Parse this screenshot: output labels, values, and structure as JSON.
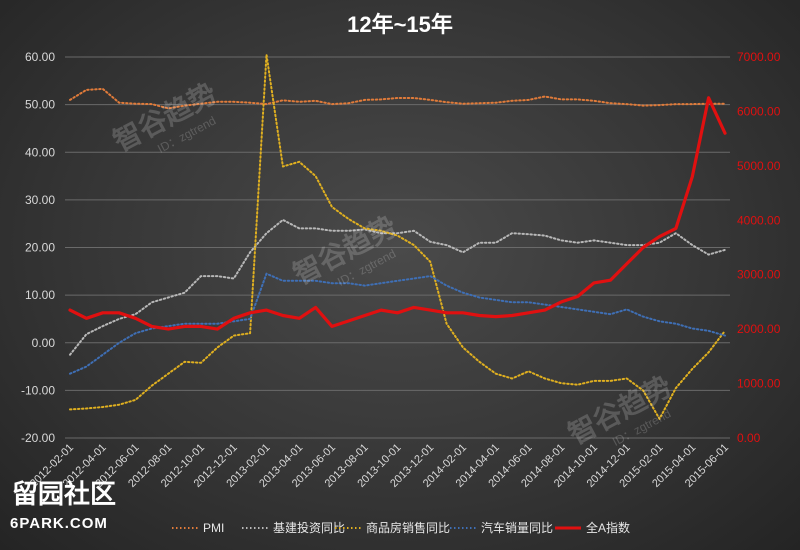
{
  "chart_data": {
    "type": "line",
    "title": "12年~15年",
    "x": [
      "2012-02-01",
      "2012-03-01",
      "2012-04-01",
      "2012-05-01",
      "2012-06-01",
      "2012-07-01",
      "2012-08-01",
      "2012-09-01",
      "2012-10-01",
      "2012-11-01",
      "2012-12-01",
      "2013-01-01",
      "2013-02-01",
      "2013-03-01",
      "2013-04-01",
      "2013-05-01",
      "2013-06-01",
      "2013-07-01",
      "2013-08-01",
      "2013-09-01",
      "2013-10-01",
      "2013-11-01",
      "2013-12-01",
      "2014-01-01",
      "2014-02-01",
      "2014-03-01",
      "2014-04-01",
      "2014-05-01",
      "2014-06-01",
      "2014-07-01",
      "2014-08-01",
      "2014-09-01",
      "2014-10-01",
      "2014-11-01",
      "2014-12-01",
      "2015-01-01",
      "2015-02-01",
      "2015-03-01",
      "2015-04-01",
      "2015-05-01",
      "2015-06-01"
    ],
    "xticks": [
      "2012-02-01",
      "2012-04-01",
      "2012-06-01",
      "2012-08-01",
      "2012-10-01",
      "2012-12-01",
      "2013-02-01",
      "2013-04-01",
      "2013-06-01",
      "2013-08-01",
      "2013-10-01",
      "2013-12-01",
      "2014-02-01",
      "2014-04-01",
      "2014-06-01",
      "2014-08-01",
      "2014-10-01",
      "2014-12-01",
      "2015-02-01",
      "2015-04-01",
      "2015-06-01"
    ],
    "y_left": {
      "ticks": [
        "60.00",
        "50.00",
        "40.00",
        "30.00",
        "20.00",
        "10.00",
        "0.00",
        "-10.00",
        "-20.00"
      ],
      "range": [
        -20,
        60
      ]
    },
    "y_right": {
      "ticks": [
        "7000.00",
        "6000.00",
        "5000.00",
        "4000.00",
        "3000.00",
        "2000.00",
        "1000.00",
        "0.00"
      ],
      "range": [
        0,
        7000
      ]
    },
    "series": [
      {
        "name": "PMI",
        "axis": "left",
        "color": "#e07b3a",
        "style": "dotted",
        "values": [
          51.0,
          53.1,
          53.3,
          50.4,
          50.2,
          50.1,
          49.2,
          49.8,
          50.2,
          50.6,
          50.6,
          50.4,
          50.1,
          50.9,
          50.6,
          50.8,
          50.1,
          50.3,
          51.0,
          51.1,
          51.4,
          51.4,
          51.0,
          50.5,
          50.2,
          50.3,
          50.4,
          50.8,
          51.0,
          51.7,
          51.1,
          51.1,
          50.8,
          50.3,
          50.1,
          49.8,
          49.9,
          50.1,
          50.1,
          50.2,
          50.2
        ]
      },
      {
        "name": "基建投资同比",
        "axis": "left",
        "color": "#b8b8b8",
        "style": "dotted",
        "values": [
          -2.5,
          1.8,
          3.5,
          5.0,
          6.0,
          8.5,
          9.5,
          10.5,
          14.0,
          14.0,
          13.5,
          19.0,
          23.0,
          25.8,
          24.0,
          24.0,
          23.5,
          23.5,
          23.8,
          23.0,
          23.0,
          23.5,
          21.2,
          20.5,
          19.0,
          21.0,
          21.0,
          23.0,
          22.8,
          22.5,
          21.5,
          21.0,
          21.5,
          21.0,
          20.5,
          20.5,
          21.0,
          23.0,
          20.5,
          18.5,
          19.5
        ]
      },
      {
        "name": "商品房销售同比",
        "axis": "left",
        "color": "#e0b020",
        "style": "dotted",
        "values": [
          -14.0,
          -13.8,
          -13.5,
          -13.0,
          -12.0,
          -9.0,
          -6.5,
          -4.0,
          -4.2,
          -1.0,
          1.5,
          2.0,
          60.5,
          37.0,
          38.0,
          35.0,
          28.5,
          26.0,
          24.0,
          23.5,
          22.5,
          20.5,
          17.0,
          4.0,
          -1.0,
          -4.0,
          -6.5,
          -7.5,
          -6.0,
          -7.5,
          -8.5,
          -8.8,
          -8.0,
          -8.0,
          -7.5,
          -10.0,
          -16.0,
          -9.5,
          -5.5,
          -2.0,
          2.5
        ]
      },
      {
        "name": "汽车销量同比",
        "axis": "left",
        "color": "#3f6fb5",
        "style": "dotted",
        "values": [
          -6.5,
          -5.0,
          -2.5,
          0.0,
          2.0,
          3.0,
          3.5,
          4.0,
          4.0,
          4.0,
          4.5,
          5.0,
          14.5,
          13.0,
          13.0,
          13.0,
          12.5,
          12.5,
          12.0,
          12.5,
          13.0,
          13.5,
          14.0,
          12.0,
          10.5,
          9.5,
          9.0,
          8.5,
          8.5,
          8.0,
          7.5,
          7.0,
          6.5,
          6.0,
          7.0,
          5.5,
          4.5,
          4.0,
          3.0,
          2.5,
          1.5
        ]
      },
      {
        "name": "全A指数",
        "axis": "right",
        "color": "#e01010",
        "style": "solid",
        "values": [
          2350,
          2200,
          2300,
          2300,
          2200,
          2050,
          2000,
          2050,
          2050,
          2000,
          2200,
          2300,
          2350,
          2250,
          2200,
          2400,
          2050,
          2150,
          2250,
          2350,
          2300,
          2400,
          2350,
          2300,
          2300,
          2250,
          2230,
          2250,
          2300,
          2350,
          2500,
          2600,
          2850,
          2900,
          3200,
          3500,
          3700,
          3850,
          4800,
          6250,
          5600
        ]
      }
    ],
    "legend_position": "bottom"
  },
  "watermarks": [
    {
      "text": "智谷趋势",
      "sub": "ID：zgtrend"
    },
    {
      "text": "智谷趋势",
      "sub": "ID：zgtrend"
    },
    {
      "text": "智谷趋势",
      "sub": "ID：zgtrend"
    }
  ],
  "logo": {
    "cn": "留园社区",
    "en": "6PARK.COM"
  }
}
